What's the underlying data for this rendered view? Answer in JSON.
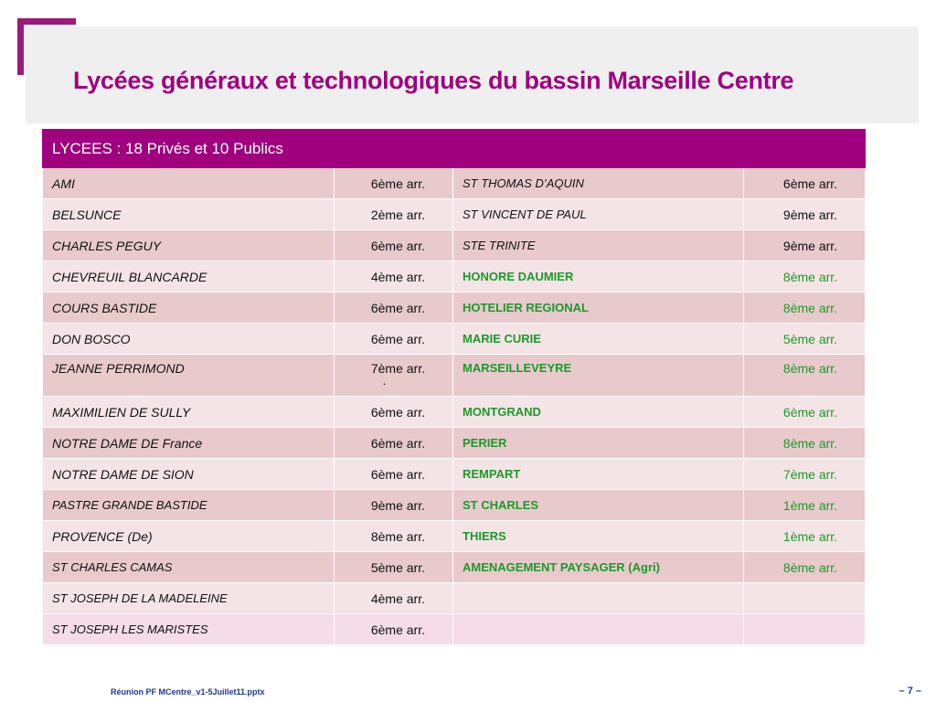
{
  "title": "Lycées généraux et technologiques du bassin Marseille Centre",
  "table": {
    "header": "LYCEES : 18 Privés et 10 Publics",
    "rows": [
      {
        "n1": "AMI",
        "a1": "6ème arr.",
        "n2": "ST THOMAS D’AQUIN",
        "a2": "6ème arr."
      },
      {
        "n1": "BELSUNCE",
        "a1": "2ème arr.",
        "n2": "ST VINCENT DE PAUL",
        "a2": "9ème arr."
      },
      {
        "n1": "CHARLES PEGUY",
        "a1": "6ème arr.",
        "n2": "STE TRINITE",
        "a2": "9ème arr."
      },
      {
        "n1": "CHEVREUIL BLANCARDE",
        "a1": "4ème arr.",
        "n2": "HONORE DAUMIER",
        "a2": "8ème arr."
      },
      {
        "n1": "COURS BASTIDE",
        "a1": "6ème arr.",
        "n2": "HOTELIER REGIONAL",
        "a2": "8ème arr."
      },
      {
        "n1": "DON BOSCO",
        "a1": "6ème arr.",
        "n2": "MARIE CURIE",
        "a2": "5ème arr."
      },
      {
        "n1": "JEANNE PERRIMOND",
        "a1": "7ème arr.",
        "a1_extra": ".",
        "n2": "MARSEILLEVEYRE",
        "a2": "8ème arr."
      },
      {
        "n1": "MAXIMILIEN DE SULLY",
        "a1": "6ème arr.",
        "n2": "MONTGRAND",
        "a2": "6ème arr."
      },
      {
        "n1": "NOTRE DAME DE France",
        "a1": "6ème arr.",
        "n2": "PERIER",
        "a2": "8ème arr."
      },
      {
        "n1": "NOTRE DAME DE SION",
        "a1": "6ème arr.",
        "n2": "REMPART",
        "a2": "7ème arr."
      },
      {
        "n1": "PASTRE GRANDE BASTIDE",
        "a1": "9ème arr.",
        "n2": "ST CHARLES",
        "a2": "1ème arr."
      },
      {
        "n1": "PROVENCE (De)",
        "a1": "8ème arr.",
        "n2": "THIERS",
        "a2": "1ème arr."
      },
      {
        "n1": "ST CHARLES CAMAS",
        "a1": "5ème arr.",
        "n2": "AMENAGEMENT PAYSAGER (Agri)",
        "a2": "8ème arr."
      },
      {
        "n1": "ST JOSEPH DE LA MADELEINE",
        "a1": "4ème arr.",
        "n2": "",
        "a2": ""
      },
      {
        "n1": "ST JOSEPH LES MARISTES",
        "a1": "6ème arr.",
        "n2": "",
        "a2": ""
      }
    ]
  },
  "footer": {
    "filename": "Réunion PF MCentre_v1-5Juillet11.pptx",
    "page": "– 7 –"
  },
  "colors": {
    "accent": "#a0007e",
    "public_text": "#1a9a2a",
    "row_dark": "#e8cacc",
    "row_light": "#f4e4e5"
  }
}
